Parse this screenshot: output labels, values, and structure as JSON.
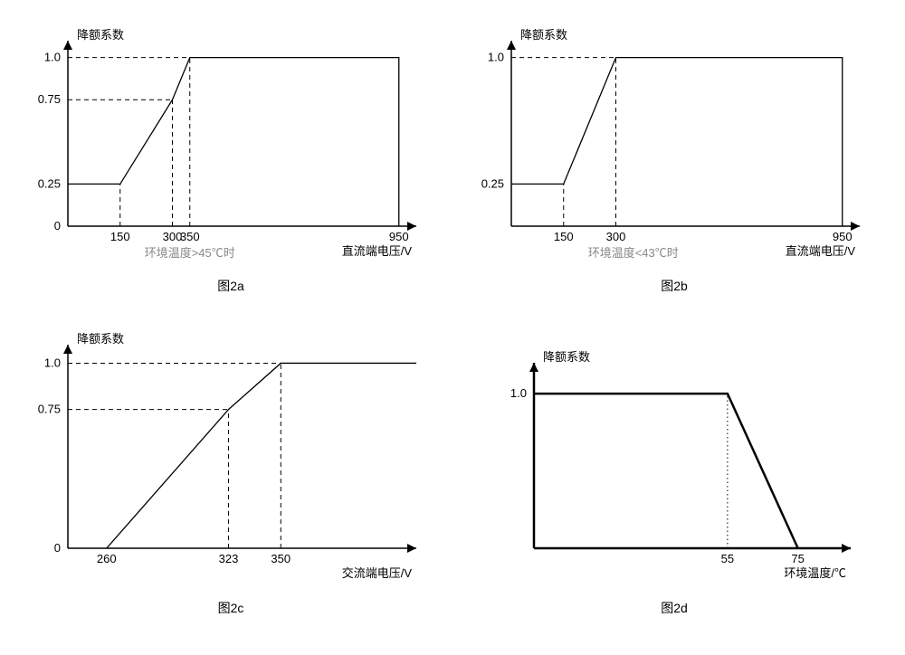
{
  "global": {
    "background": "#ffffff",
    "axis_color": "#000000",
    "curve_color": "#000000",
    "subtitle_color": "#888888",
    "font_family": "SimSun",
    "font_size_pt": 10
  },
  "fig2a": {
    "type": "line",
    "y_axis_label": "降额系数",
    "x_axis_label": "直流端电压/V",
    "y_ticks": [
      0,
      0.25,
      0.75,
      1.0
    ],
    "y_tick_labels": [
      "0",
      "0.25",
      "0.75",
      "1.0"
    ],
    "x_ticks": [
      150,
      300,
      350,
      950
    ],
    "x_tick_labels": [
      "150",
      "300",
      "350",
      "950"
    ],
    "xlim": [
      0,
      1000
    ],
    "ylim": [
      0,
      1.1
    ],
    "curve_points": [
      [
        0,
        0.25
      ],
      [
        150,
        0.25
      ],
      [
        300,
        0.75
      ],
      [
        350,
        1.0
      ],
      [
        950,
        1.0
      ],
      [
        950,
        0
      ]
    ],
    "dashed_lines": [
      {
        "from": [
          0,
          1.0
        ],
        "to": [
          350,
          1.0
        ]
      },
      {
        "from": [
          0,
          0.75
        ],
        "to": [
          300,
          0.75
        ]
      },
      {
        "from": [
          150,
          0
        ],
        "to": [
          150,
          0.25
        ]
      },
      {
        "from": [
          300,
          0
        ],
        "to": [
          300,
          0.75
        ]
      },
      {
        "from": [
          350,
          0
        ],
        "to": [
          350,
          1.0
        ]
      }
    ],
    "subtitle": "环境温度>45℃时",
    "caption": "图2a"
  },
  "fig2b": {
    "type": "line",
    "y_axis_label": "降额系数",
    "x_axis_label": "直流端电压/V",
    "y_ticks": [
      0.25,
      1.0
    ],
    "y_tick_labels": [
      "0.25",
      "1.0"
    ],
    "x_ticks": [
      150,
      300,
      950
    ],
    "x_tick_labels": [
      "150",
      "300",
      "950"
    ],
    "xlim": [
      0,
      1000
    ],
    "ylim": [
      0,
      1.1
    ],
    "curve_points": [
      [
        0,
        0.25
      ],
      [
        150,
        0.25
      ],
      [
        300,
        1.0
      ],
      [
        950,
        1.0
      ],
      [
        950,
        0
      ]
    ],
    "dashed_lines": [
      {
        "from": [
          0,
          1.0
        ],
        "to": [
          300,
          1.0
        ]
      },
      {
        "from": [
          150,
          0
        ],
        "to": [
          150,
          0.25
        ]
      },
      {
        "from": [
          300,
          0
        ],
        "to": [
          300,
          1.0
        ]
      }
    ],
    "subtitle": "环境温度<43℃时",
    "caption": "图2b"
  },
  "fig2c": {
    "type": "line",
    "y_axis_label": "降额系数",
    "x_axis_label": "交流端电压/V",
    "y_ticks": [
      0,
      0.75,
      1.0
    ],
    "y_tick_labels": [
      "0",
      "0.75",
      "1.0"
    ],
    "x_ticks": [
      260,
      323,
      350
    ],
    "x_tick_labels": [
      "260",
      "323",
      "350"
    ],
    "xlim": [
      240,
      420
    ],
    "ylim": [
      0,
      1.1
    ],
    "curve_points": [
      [
        260,
        0
      ],
      [
        323,
        0.75
      ],
      [
        350,
        1.0
      ],
      [
        420,
        1.0
      ]
    ],
    "dashed_lines": [
      {
        "from": [
          240,
          1.0
        ],
        "to": [
          350,
          1.0
        ]
      },
      {
        "from": [
          240,
          0.75
        ],
        "to": [
          323,
          0.75
        ]
      },
      {
        "from": [
          323,
          0
        ],
        "to": [
          323,
          0.75
        ]
      },
      {
        "from": [
          350,
          0
        ],
        "to": [
          350,
          1.0
        ]
      }
    ],
    "caption": "图2c"
  },
  "fig2d": {
    "type": "line",
    "y_axis_label": "降额系数",
    "x_axis_label": "环境温度/℃",
    "y_ticks": [
      1.0
    ],
    "y_tick_labels": [
      "1.0"
    ],
    "x_ticks": [
      55,
      75
    ],
    "x_tick_labels": [
      "55",
      "75"
    ],
    "xlim": [
      0,
      90
    ],
    "ylim": [
      0,
      1.2
    ],
    "curve_points": [
      [
        0,
        1.0
      ],
      [
        55,
        1.0
      ],
      [
        75,
        0
      ]
    ],
    "curve_thick": true,
    "dotted_lines": [
      {
        "from": [
          55,
          0
        ],
        "to": [
          55,
          1.0
        ]
      }
    ],
    "caption": "图2d"
  }
}
